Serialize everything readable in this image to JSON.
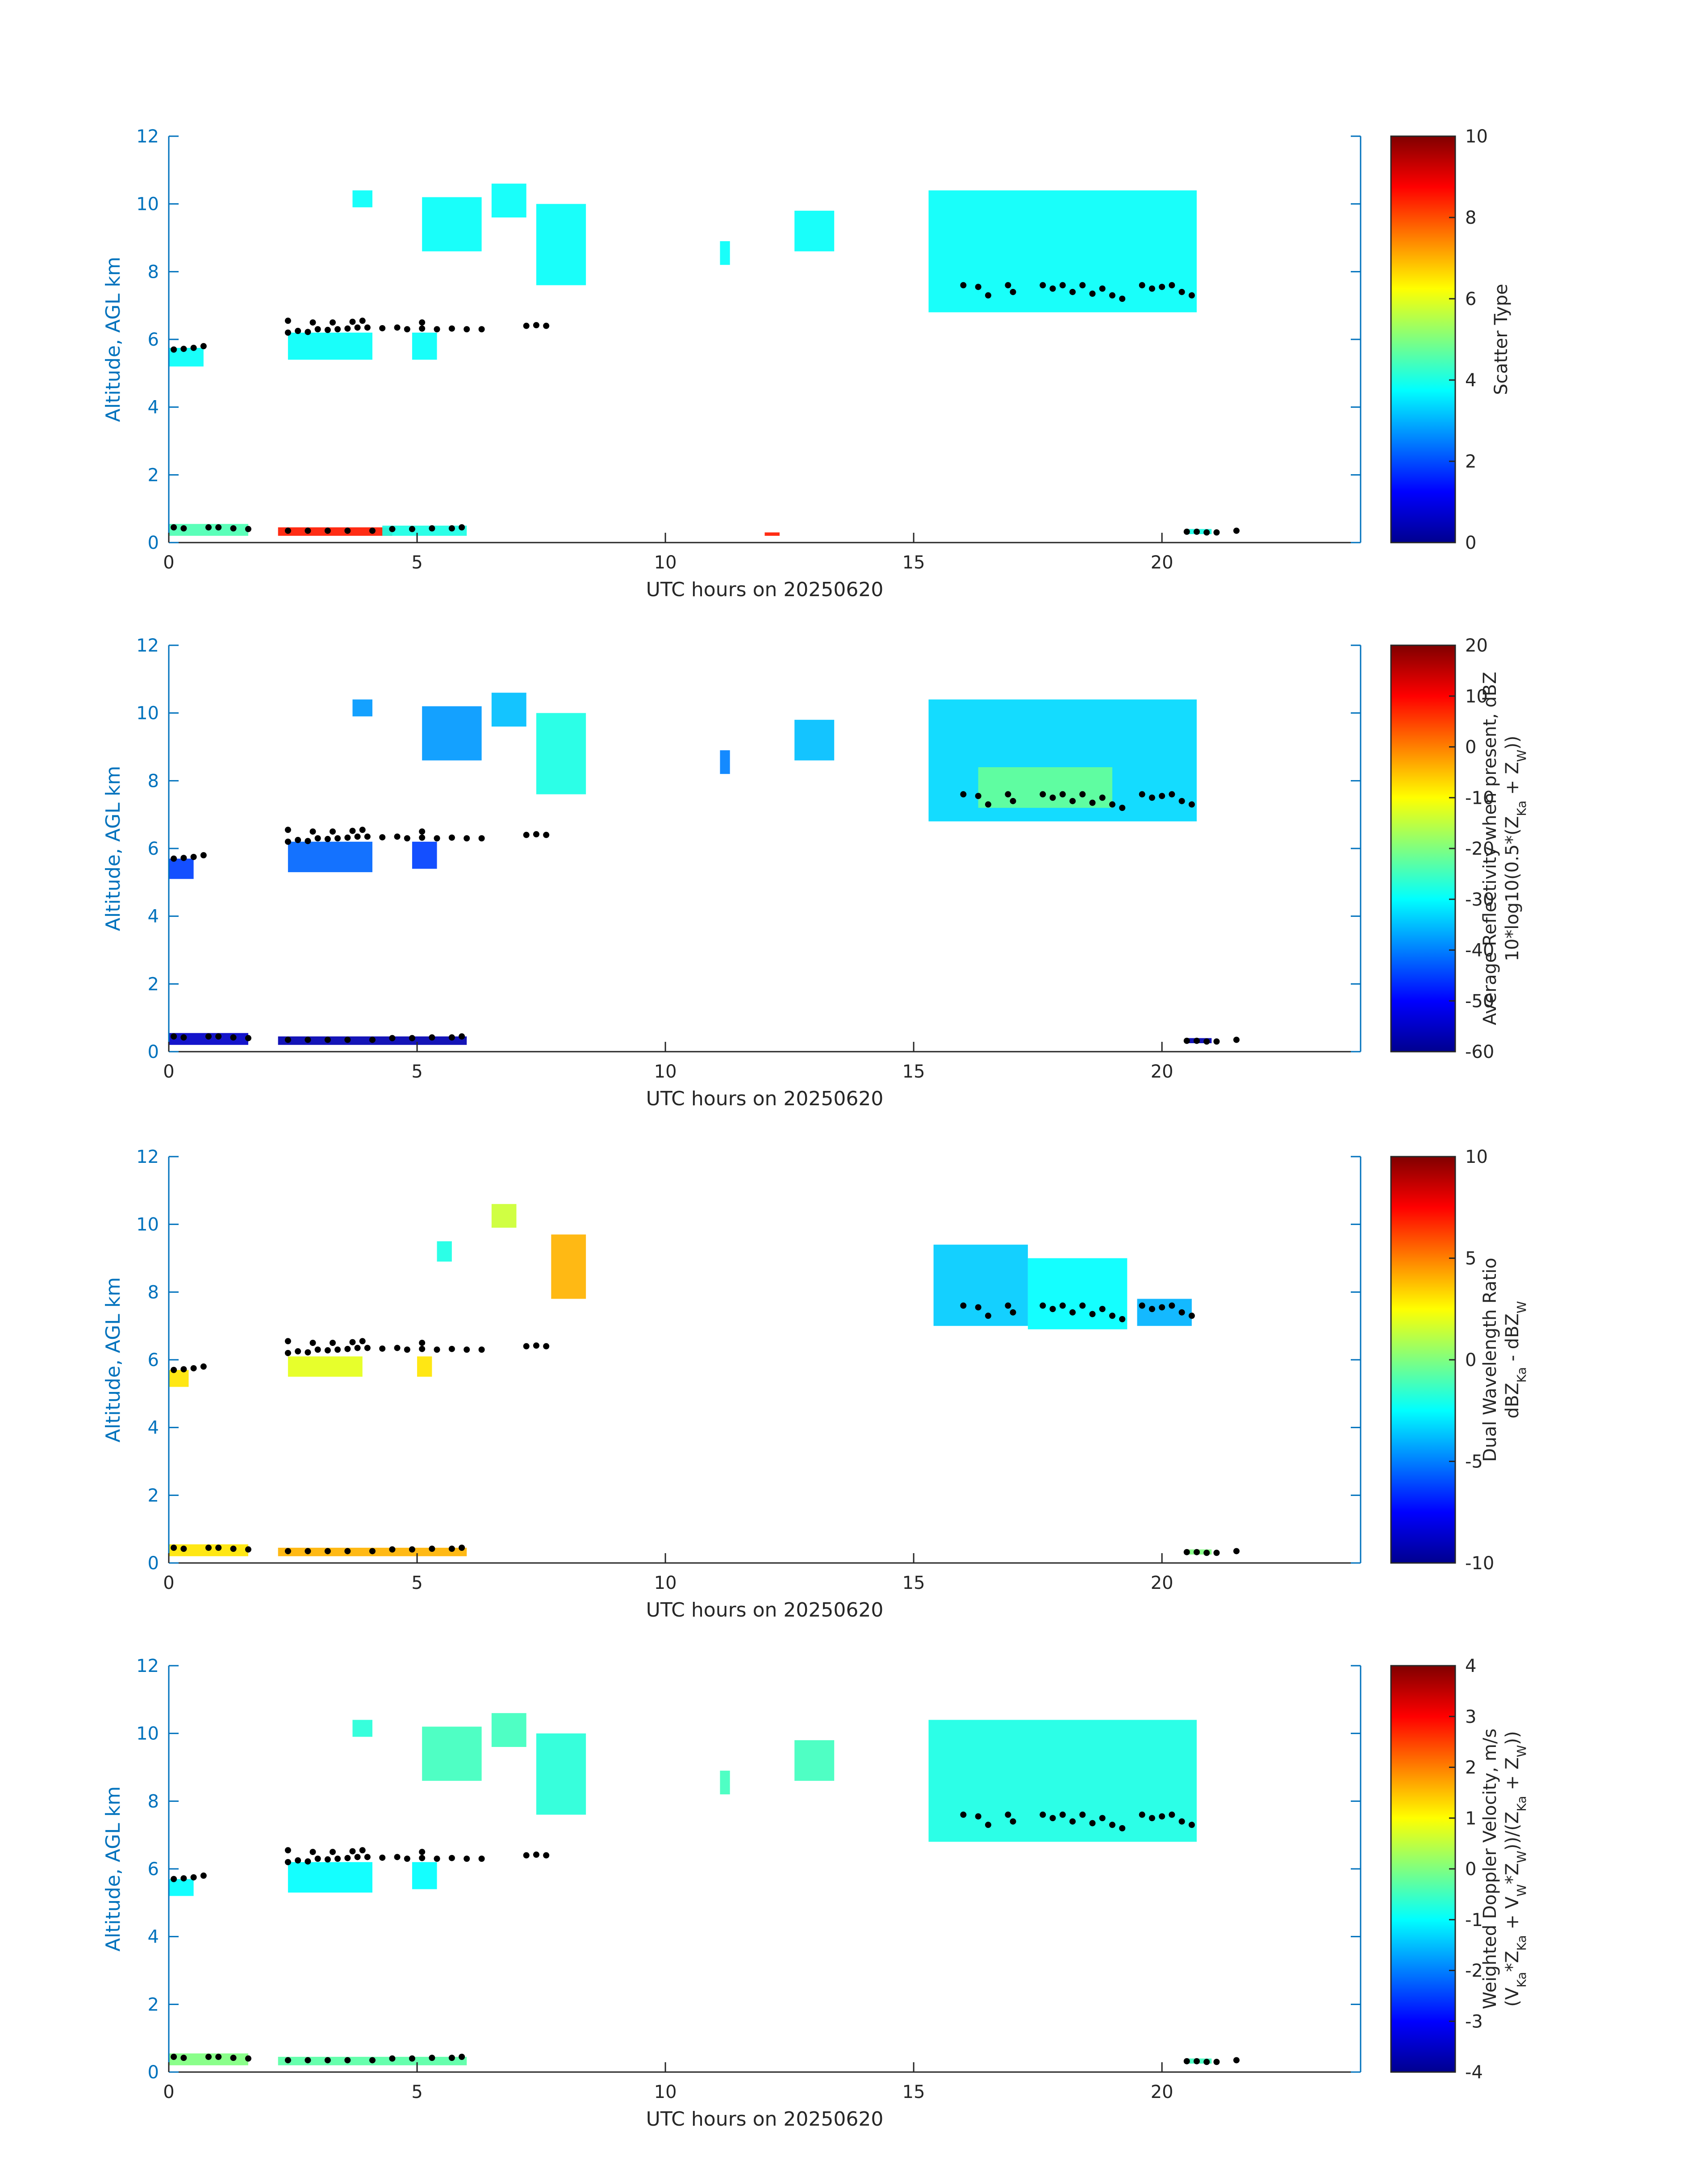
{
  "figure": {
    "title": "",
    "axis_color": "#0072BD",
    "overlay_color": "#000000"
  },
  "chart_data": [
    {
      "type": "heatmap",
      "title": "",
      "xlabel": "UTC hours on 20250620",
      "ylabel": "Altitude, AGL km",
      "xlim": [
        0,
        24
      ],
      "ylim": [
        0,
        12
      ],
      "xticks": [
        "0",
        "5",
        "10",
        "15",
        "20"
      ],
      "yticks": [
        "0",
        "2",
        "4",
        "6",
        "8",
        "10",
        "12"
      ],
      "colorbar": {
        "label_lines": [
          "Scatter Type"
        ],
        "ticks": [
          "0",
          "2",
          "4",
          "6",
          "8",
          "10"
        ],
        "range": [
          0,
          10
        ],
        "colormap": "jet"
      },
      "regions": [
        {
          "t0": 0.0,
          "t1": 0.7,
          "z0": 5.2,
          "z1": 5.75,
          "v": 3.8
        },
        {
          "t0": 2.4,
          "t1": 4.1,
          "z0": 5.4,
          "z1": 6.2,
          "v": 3.8
        },
        {
          "t0": 4.9,
          "t1": 5.4,
          "z0": 5.4,
          "z1": 6.2,
          "v": 3.8
        },
        {
          "t0": 3.7,
          "t1": 4.1,
          "z0": 9.9,
          "z1": 10.4,
          "v": 3.8
        },
        {
          "t0": 5.1,
          "t1": 6.3,
          "z0": 8.6,
          "z1": 10.2,
          "v": 3.8
        },
        {
          "t0": 6.5,
          "t1": 7.2,
          "z0": 9.6,
          "z1": 10.6,
          "v": 3.8
        },
        {
          "t0": 7.4,
          "t1": 8.4,
          "z0": 7.6,
          "z1": 10.0,
          "v": 3.8
        },
        {
          "t0": 11.1,
          "t1": 11.3,
          "z0": 8.2,
          "z1": 8.9,
          "v": 3.8
        },
        {
          "t0": 12.6,
          "t1": 13.4,
          "z0": 8.6,
          "z1": 9.8,
          "v": 3.8
        },
        {
          "t0": 15.3,
          "t1": 20.7,
          "z0": 6.8,
          "z1": 10.4,
          "v": 3.8
        },
        {
          "t0": 0.0,
          "t1": 1.6,
          "z0": 0.2,
          "z1": 0.55,
          "v": 4.5
        },
        {
          "t0": 2.2,
          "t1": 4.5,
          "z0": 0.2,
          "z1": 0.45,
          "v": 8.5
        },
        {
          "t0": 4.3,
          "t1": 6.0,
          "z0": 0.2,
          "z1": 0.5,
          "v": 4.0
        },
        {
          "t0": 12.0,
          "t1": 12.3,
          "z0": 0.2,
          "z1": 0.3,
          "v": 8.5
        },
        {
          "t0": 20.5,
          "t1": 21.0,
          "z0": 0.25,
          "z1": 0.4,
          "v": 4.0
        }
      ]
    },
    {
      "type": "heatmap",
      "title": "",
      "xlabel": "UTC hours on 20250620",
      "ylabel": "Altitude, AGL km",
      "xlim": [
        0,
        24
      ],
      "ylim": [
        0,
        12
      ],
      "xticks": [
        "0",
        "5",
        "10",
        "15",
        "20"
      ],
      "yticks": [
        "0",
        "2",
        "4",
        "6",
        "8",
        "10",
        "12"
      ],
      "colorbar": {
        "label_lines": [
          "Average Reflectivity when present, dBZ",
          "10*log10(0.5*(Z_Ka + Z_W))"
        ],
        "ticks": [
          "-60",
          "-50",
          "-40",
          "-30",
          "-20",
          "-10",
          "0",
          "10",
          "20"
        ],
        "range": [
          -60,
          20
        ],
        "colormap": "jet"
      },
      "regions": [
        {
          "t0": 0.0,
          "t1": 0.5,
          "z0": 5.1,
          "z1": 5.7,
          "v": -45
        },
        {
          "t0": 2.4,
          "t1": 4.1,
          "z0": 5.3,
          "z1": 6.2,
          "v": -42
        },
        {
          "t0": 4.9,
          "t1": 5.4,
          "z0": 5.4,
          "z1": 6.2,
          "v": -45
        },
        {
          "t0": 3.7,
          "t1": 4.1,
          "z0": 9.9,
          "z1": 10.4,
          "v": -38
        },
        {
          "t0": 5.1,
          "t1": 6.3,
          "z0": 8.6,
          "z1": 10.2,
          "v": -38
        },
        {
          "t0": 6.5,
          "t1": 7.2,
          "z0": 9.6,
          "z1": 10.6,
          "v": -35
        },
        {
          "t0": 7.4,
          "t1": 8.4,
          "z0": 7.6,
          "z1": 10.0,
          "v": -28
        },
        {
          "t0": 11.1,
          "t1": 11.3,
          "z0": 8.2,
          "z1": 8.9,
          "v": -40
        },
        {
          "t0": 12.6,
          "t1": 13.4,
          "z0": 8.6,
          "z1": 9.8,
          "v": -35
        },
        {
          "t0": 15.3,
          "t1": 20.7,
          "z0": 6.8,
          "z1": 10.4,
          "v": -33
        },
        {
          "t0": 16.3,
          "t1": 19.0,
          "z0": 7.2,
          "z1": 8.4,
          "v": -22
        },
        {
          "t0": 0.0,
          "t1": 1.6,
          "z0": 0.2,
          "z1": 0.55,
          "v": -55
        },
        {
          "t0": 2.2,
          "t1": 6.0,
          "z0": 0.2,
          "z1": 0.45,
          "v": -57
        },
        {
          "t0": 20.5,
          "t1": 21.0,
          "z0": 0.25,
          "z1": 0.4,
          "v": -57
        }
      ]
    },
    {
      "type": "heatmap",
      "title": "",
      "xlabel": "UTC hours on 20250620",
      "ylabel": "Altitude, AGL km",
      "xlim": [
        0,
        24
      ],
      "ylim": [
        0,
        12
      ],
      "xticks": [
        "0",
        "5",
        "10",
        "15",
        "20"
      ],
      "yticks": [
        "0",
        "2",
        "4",
        "6",
        "8",
        "10",
        "12"
      ],
      "colorbar": {
        "label_lines": [
          "Dual Wavelength Ratio",
          "dBZ_Ka - dBZ_W"
        ],
        "ticks": [
          "-10",
          "-5",
          "0",
          "5",
          "10"
        ],
        "range": [
          -10,
          10
        ],
        "colormap": "jet"
      },
      "regions": [
        {
          "t0": 0.0,
          "t1": 0.4,
          "z0": 5.2,
          "z1": 5.7,
          "v": 3.0
        },
        {
          "t0": 2.4,
          "t1": 3.9,
          "z0": 5.5,
          "z1": 6.1,
          "v": 2.0
        },
        {
          "t0": 5.0,
          "t1": 5.3,
          "z0": 5.5,
          "z1": 6.1,
          "v": 3.0
        },
        {
          "t0": 5.4,
          "t1": 5.7,
          "z0": 8.9,
          "z1": 9.5,
          "v": -2.0
        },
        {
          "t0": 6.5,
          "t1": 7.0,
          "z0": 9.9,
          "z1": 10.6,
          "v": 1.5
        },
        {
          "t0": 7.7,
          "t1": 8.4,
          "z0": 7.8,
          "z1": 9.7,
          "v": 4.0
        },
        {
          "t0": 15.4,
          "t1": 17.3,
          "z0": 7.0,
          "z1": 9.4,
          "v": -3.5
        },
        {
          "t0": 17.3,
          "t1": 19.3,
          "z0": 6.9,
          "z1": 9.0,
          "v": -2.5
        },
        {
          "t0": 19.5,
          "t1": 20.6,
          "z0": 7.0,
          "z1": 7.8,
          "v": -4.0
        },
        {
          "t0": 0.0,
          "t1": 1.6,
          "z0": 0.2,
          "z1": 0.55,
          "v": 3.0
        },
        {
          "t0": 2.2,
          "t1": 6.0,
          "z0": 0.2,
          "z1": 0.45,
          "v": 4.0
        },
        {
          "t0": 20.5,
          "t1": 21.0,
          "z0": 0.25,
          "z1": 0.4,
          "v": 0.0
        }
      ]
    },
    {
      "type": "heatmap",
      "title": "",
      "xlabel": "UTC hours on 20250620",
      "ylabel": "Altitude, AGL km",
      "xlim": [
        0,
        24
      ],
      "ylim": [
        0,
        12
      ],
      "xticks": [
        "0",
        "5",
        "10",
        "15",
        "20"
      ],
      "yticks": [
        "0",
        "2",
        "4",
        "6",
        "8",
        "10",
        "12"
      ],
      "colorbar": {
        "label_lines": [
          "Weighted Doppler Velocity, m/s",
          "(V_Ka*Z_Ka + V_W*Z_W))/(Z_Ka + Z_W))"
        ],
        "ticks": [
          "-4",
          "-3",
          "-2",
          "-1",
          "0",
          "1",
          "2",
          "3",
          "4"
        ],
        "range": [
          -4,
          4
        ],
        "colormap": "jet"
      },
      "regions": [
        {
          "t0": 0.0,
          "t1": 0.5,
          "z0": 5.2,
          "z1": 5.7,
          "v": -1.0
        },
        {
          "t0": 2.4,
          "t1": 4.1,
          "z0": 5.3,
          "z1": 6.2,
          "v": -1.0
        },
        {
          "t0": 4.9,
          "t1": 5.4,
          "z0": 5.4,
          "z1": 6.2,
          "v": -1.0
        },
        {
          "t0": 3.7,
          "t1": 4.1,
          "z0": 9.9,
          "z1": 10.4,
          "v": -0.7
        },
        {
          "t0": 5.1,
          "t1": 6.3,
          "z0": 8.6,
          "z1": 10.2,
          "v": -0.5
        },
        {
          "t0": 6.5,
          "t1": 7.2,
          "z0": 9.6,
          "z1": 10.6,
          "v": -0.5
        },
        {
          "t0": 7.4,
          "t1": 8.4,
          "z0": 7.6,
          "z1": 10.0,
          "v": -0.7
        },
        {
          "t0": 11.1,
          "t1": 11.3,
          "z0": 8.2,
          "z1": 8.9,
          "v": -0.5
        },
        {
          "t0": 12.6,
          "t1": 13.4,
          "z0": 8.6,
          "z1": 9.8,
          "v": -0.5
        },
        {
          "t0": 15.3,
          "t1": 20.7,
          "z0": 6.8,
          "z1": 10.4,
          "v": -0.8
        },
        {
          "t0": 0.0,
          "t1": 1.6,
          "z0": 0.2,
          "z1": 0.55,
          "v": 0.0
        },
        {
          "t0": 2.2,
          "t1": 6.0,
          "z0": 0.2,
          "z1": 0.45,
          "v": -0.3
        },
        {
          "t0": 20.5,
          "t1": 21.0,
          "z0": 0.25,
          "z1": 0.4,
          "v": -0.5
        }
      ]
    }
  ],
  "overlay_dots": {
    "series_name": "cloud layer markers",
    "points": [
      {
        "t": 0.1,
        "z": 5.7
      },
      {
        "t": 0.3,
        "z": 5.72
      },
      {
        "t": 0.5,
        "z": 5.75
      },
      {
        "t": 0.7,
        "z": 5.8
      },
      {
        "t": 2.4,
        "z": 6.2
      },
      {
        "t": 2.6,
        "z": 6.25
      },
      {
        "t": 2.8,
        "z": 6.22
      },
      {
        "t": 3.0,
        "z": 6.3
      },
      {
        "t": 3.2,
        "z": 6.28
      },
      {
        "t": 3.4,
        "z": 6.3
      },
      {
        "t": 3.6,
        "z": 6.32
      },
      {
        "t": 3.8,
        "z": 6.35
      },
      {
        "t": 4.0,
        "z": 6.35
      },
      {
        "t": 4.3,
        "z": 6.33
      },
      {
        "t": 4.6,
        "z": 6.35
      },
      {
        "t": 2.4,
        "z": 6.55
      },
      {
        "t": 2.9,
        "z": 6.5
      },
      {
        "t": 3.3,
        "z": 6.5
      },
      {
        "t": 3.7,
        "z": 6.52
      },
      {
        "t": 3.9,
        "z": 6.55
      },
      {
        "t": 4.8,
        "z": 6.3
      },
      {
        "t": 5.1,
        "z": 6.32
      },
      {
        "t": 5.4,
        "z": 6.3
      },
      {
        "t": 5.7,
        "z": 6.32
      },
      {
        "t": 6.0,
        "z": 6.3
      },
      {
        "t": 6.3,
        "z": 6.3
      },
      {
        "t": 5.1,
        "z": 6.5
      },
      {
        "t": 7.2,
        "z": 6.4
      },
      {
        "t": 7.4,
        "z": 6.42
      },
      {
        "t": 7.6,
        "z": 6.4
      },
      {
        "t": 16.0,
        "z": 7.6
      },
      {
        "t": 16.3,
        "z": 7.55
      },
      {
        "t": 16.5,
        "z": 7.3
      },
      {
        "t": 16.9,
        "z": 7.6
      },
      {
        "t": 17.0,
        "z": 7.4
      },
      {
        "t": 17.6,
        "z": 7.6
      },
      {
        "t": 17.8,
        "z": 7.5
      },
      {
        "t": 18.0,
        "z": 7.6
      },
      {
        "t": 18.2,
        "z": 7.4
      },
      {
        "t": 18.4,
        "z": 7.6
      },
      {
        "t": 18.6,
        "z": 7.35
      },
      {
        "t": 18.8,
        "z": 7.5
      },
      {
        "t": 19.0,
        "z": 7.3
      },
      {
        "t": 19.2,
        "z": 7.2
      },
      {
        "t": 19.6,
        "z": 7.6
      },
      {
        "t": 19.8,
        "z": 7.5
      },
      {
        "t": 20.0,
        "z": 7.55
      },
      {
        "t": 20.2,
        "z": 7.6
      },
      {
        "t": 20.4,
        "z": 7.4
      },
      {
        "t": 20.6,
        "z": 7.3
      },
      {
        "t": 0.1,
        "z": 0.45
      },
      {
        "t": 0.3,
        "z": 0.42
      },
      {
        "t": 0.8,
        "z": 0.45
      },
      {
        "t": 1.0,
        "z": 0.45
      },
      {
        "t": 1.3,
        "z": 0.42
      },
      {
        "t": 1.6,
        "z": 0.4
      },
      {
        "t": 2.4,
        "z": 0.35
      },
      {
        "t": 2.8,
        "z": 0.35
      },
      {
        "t": 3.2,
        "z": 0.35
      },
      {
        "t": 3.6,
        "z": 0.35
      },
      {
        "t": 4.1,
        "z": 0.35
      },
      {
        "t": 4.5,
        "z": 0.4
      },
      {
        "t": 4.9,
        "z": 0.4
      },
      {
        "t": 5.3,
        "z": 0.42
      },
      {
        "t": 5.7,
        "z": 0.42
      },
      {
        "t": 5.9,
        "z": 0.45
      },
      {
        "t": 20.5,
        "z": 0.32
      },
      {
        "t": 20.7,
        "z": 0.32
      },
      {
        "t": 20.9,
        "z": 0.3
      },
      {
        "t": 21.1,
        "z": 0.3
      },
      {
        "t": 21.5,
        "z": 0.35
      }
    ]
  }
}
